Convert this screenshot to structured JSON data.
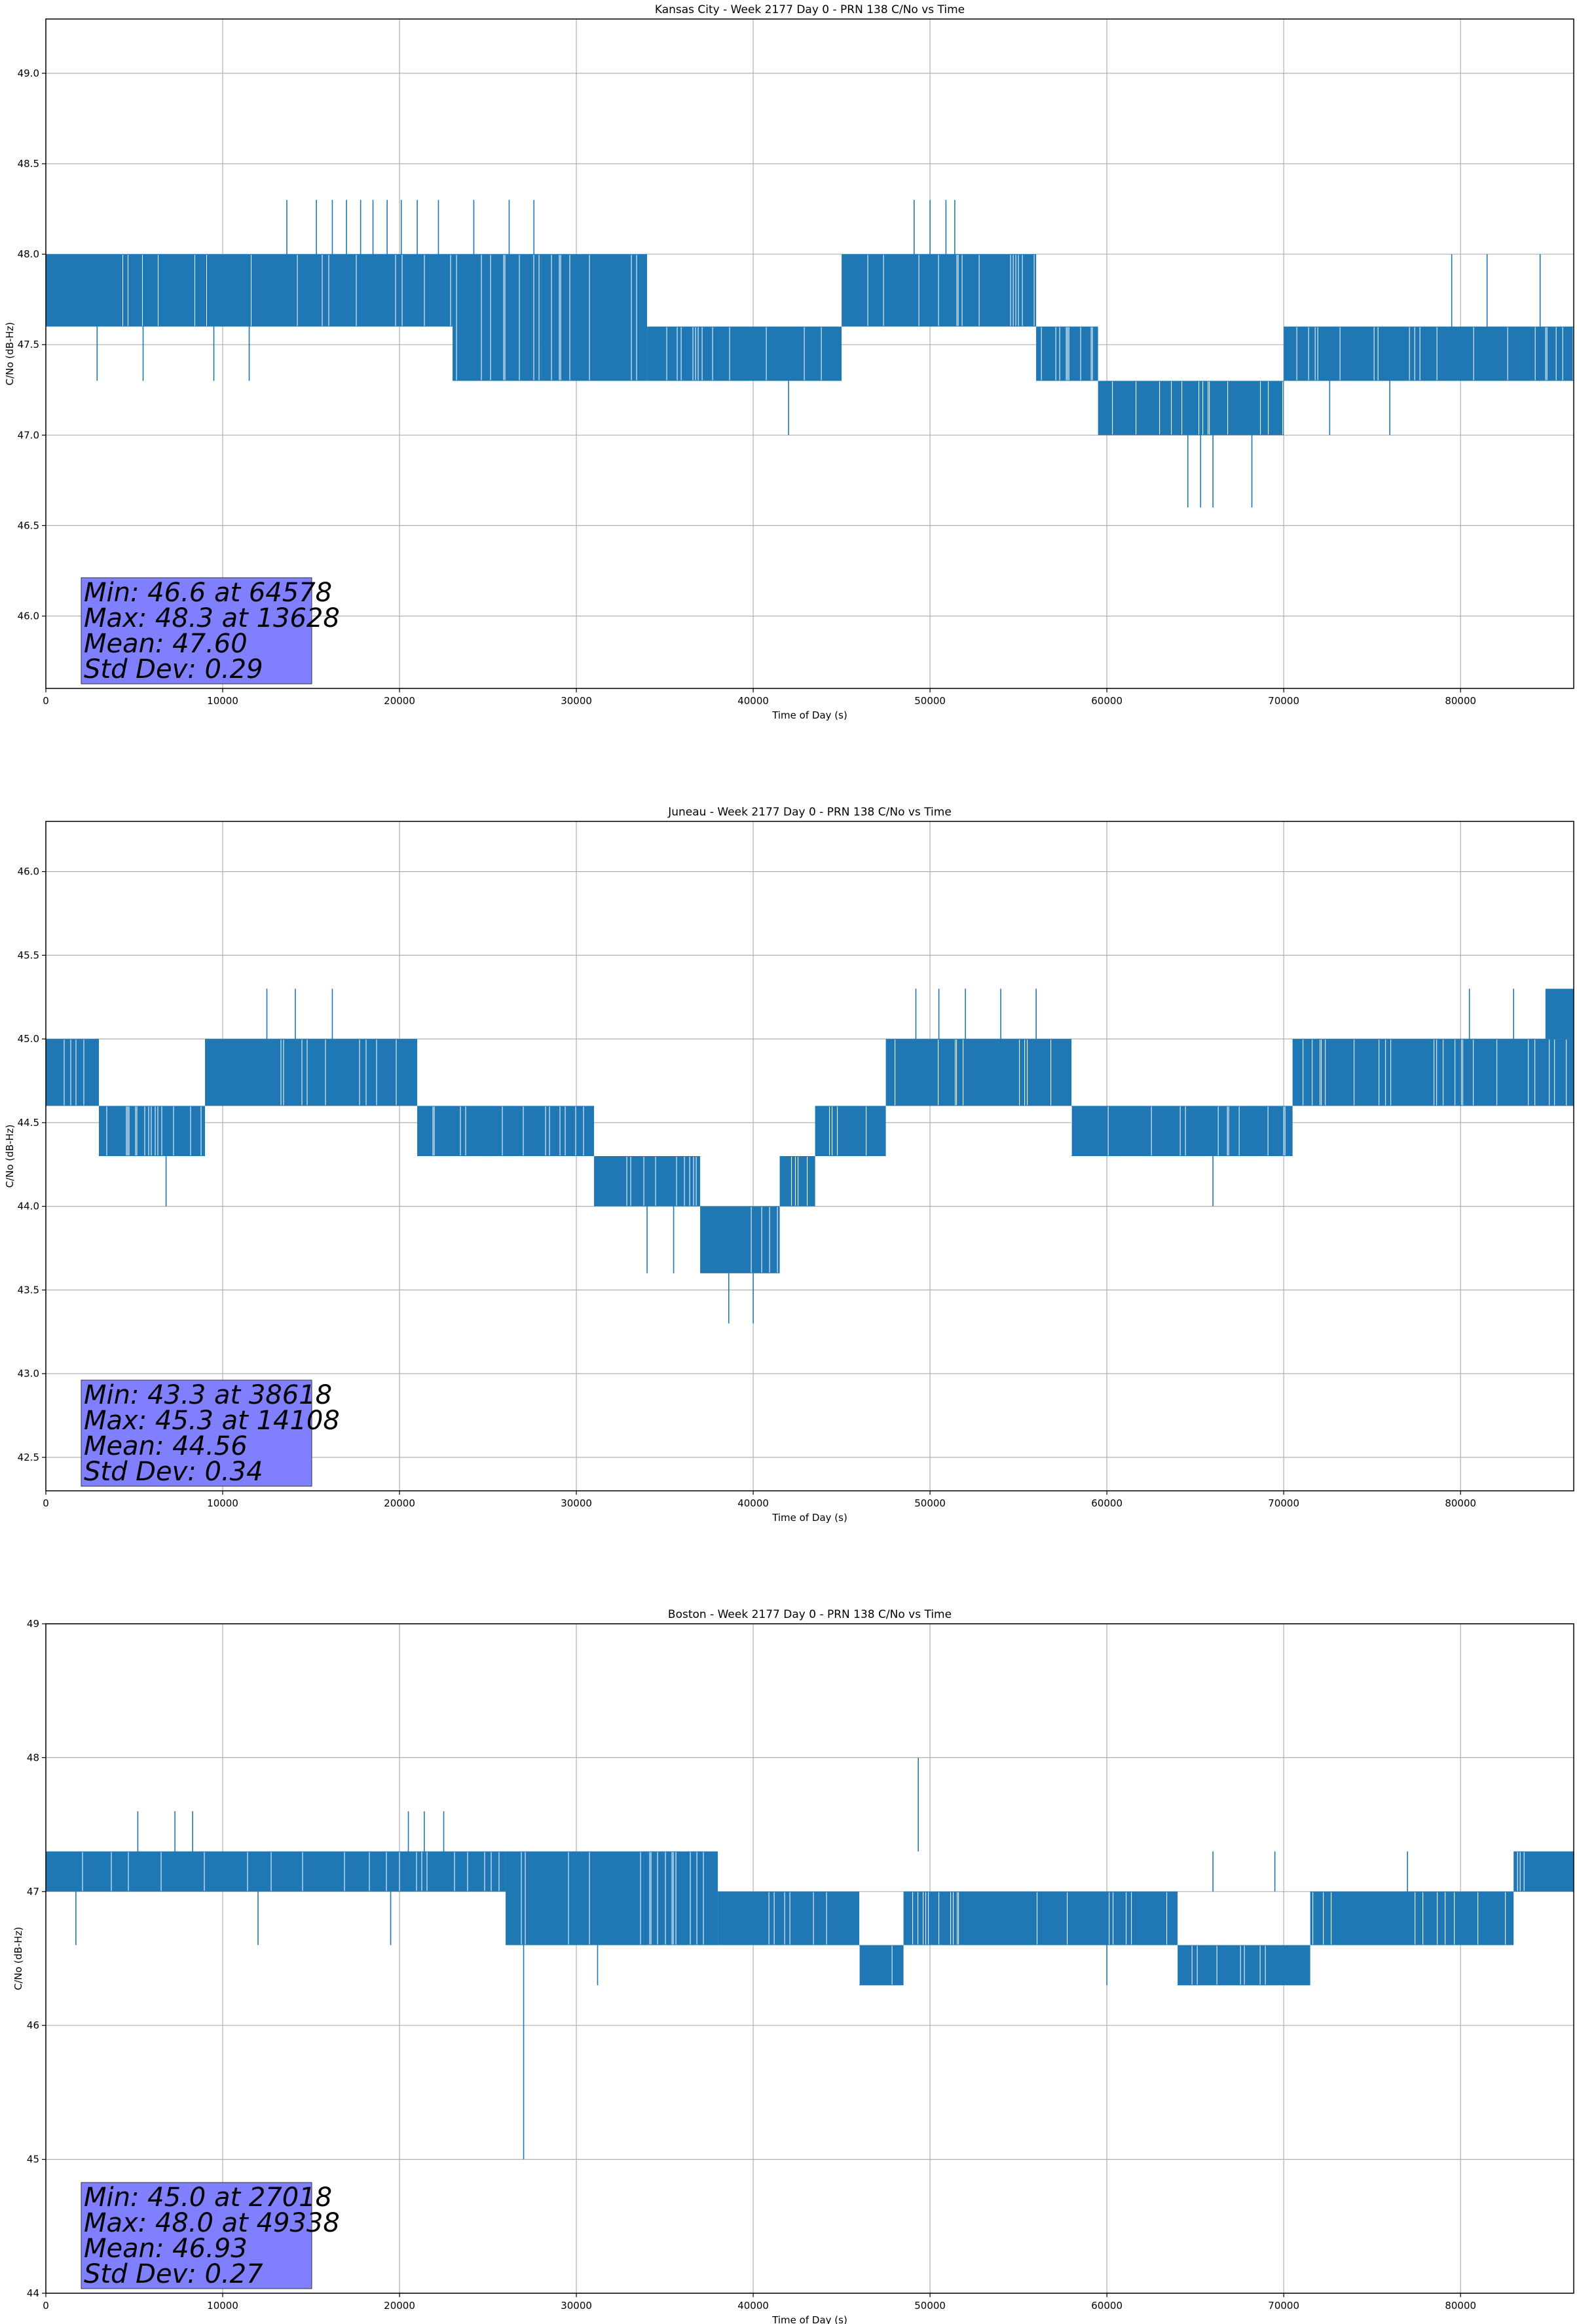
{
  "chart_data": [
    {
      "type": "line",
      "title": "Kansas City - Week 2177 Day 0 - PRN 138 C/No vs Time",
      "xlabel": "Time of Day (s)",
      "ylabel": "C/No (dB-Hz)",
      "xlim": [
        0,
        86400
      ],
      "ylim": [
        45.6,
        49.3
      ],
      "xticks": [
        0,
        10000,
        20000,
        30000,
        40000,
        50000,
        60000,
        70000,
        80000
      ],
      "yticks": [
        "46.0",
        "46.5",
        "47.0",
        "47.5",
        "48.0",
        "48.5",
        "49.0"
      ],
      "grid": true,
      "color": "#1f77b4",
      "stats": [
        "Min: 46.6 at 64578",
        "Max: 48.3 at 13628",
        "Mean: 47.60",
        "Std Dev: 0.29"
      ],
      "series": [
        {
          "segments": [
            {
              "x": [
                0,
                2500
              ],
              "lo": 47.6,
              "hi": 48.0
            },
            {
              "x": [
                2500,
                14000
              ],
              "lo": 47.6,
              "hi": 48.0
            },
            {
              "x": [
                14000,
                23000
              ],
              "lo": 47.6,
              "hi": 48.0
            },
            {
              "x": [
                23000,
                28000
              ],
              "lo": 47.3,
              "hi": 48.0
            },
            {
              "x": [
                28000,
                34000
              ],
              "lo": 47.3,
              "hi": 48.0
            },
            {
              "x": [
                34000,
                45000
              ],
              "lo": 47.3,
              "hi": 47.6
            },
            {
              "x": [
                45000,
                56000
              ],
              "lo": 47.6,
              "hi": 48.0
            },
            {
              "x": [
                56000,
                59500
              ],
              "lo": 47.3,
              "hi": 47.6
            },
            {
              "x": [
                59500,
                70000
              ],
              "lo": 47.0,
              "hi": 47.3
            },
            {
              "x": [
                70000,
                86400
              ],
              "lo": 47.3,
              "hi": 47.6
            }
          ],
          "spikes": [
            {
              "x": 2900,
              "lo": 47.3,
              "hi": 47.6
            },
            {
              "x": 5500,
              "lo": 47.3,
              "hi": 47.6
            },
            {
              "x": 9500,
              "lo": 47.3,
              "hi": 47.6
            },
            {
              "x": 11500,
              "lo": 47.3,
              "hi": 47.6
            },
            {
              "x": 13628,
              "lo": 48.0,
              "hi": 48.3
            },
            {
              "x": 15300,
              "lo": 48.0,
              "hi": 48.3
            },
            {
              "x": 16200,
              "lo": 48.0,
              "hi": 48.3
            },
            {
              "x": 17000,
              "lo": 48.0,
              "hi": 48.3
            },
            {
              "x": 17800,
              "lo": 48.0,
              "hi": 48.3
            },
            {
              "x": 18500,
              "lo": 48.0,
              "hi": 48.3
            },
            {
              "x": 19300,
              "lo": 48.0,
              "hi": 48.3
            },
            {
              "x": 20100,
              "lo": 48.0,
              "hi": 48.3
            },
            {
              "x": 21000,
              "lo": 48.0,
              "hi": 48.3
            },
            {
              "x": 22200,
              "lo": 48.0,
              "hi": 48.3
            },
            {
              "x": 24200,
              "lo": 48.0,
              "hi": 48.3
            },
            {
              "x": 26200,
              "lo": 48.0,
              "hi": 48.3
            },
            {
              "x": 27600,
              "lo": 48.0,
              "hi": 48.3
            },
            {
              "x": 42000,
              "lo": 47.0,
              "hi": 47.3
            },
            {
              "x": 49100,
              "lo": 48.0,
              "hi": 48.3
            },
            {
              "x": 50000,
              "lo": 48.0,
              "hi": 48.3
            },
            {
              "x": 50900,
              "lo": 48.0,
              "hi": 48.3
            },
            {
              "x": 51400,
              "lo": 48.0,
              "hi": 48.3
            },
            {
              "x": 64578,
              "lo": 46.6,
              "hi": 47.0
            },
            {
              "x": 65300,
              "lo": 46.6,
              "hi": 47.0
            },
            {
              "x": 66000,
              "lo": 46.6,
              "hi": 47.0
            },
            {
              "x": 68200,
              "lo": 46.6,
              "hi": 47.0
            },
            {
              "x": 72600,
              "lo": 47.0,
              "hi": 47.3
            },
            {
              "x": 76000,
              "lo": 47.0,
              "hi": 47.3
            },
            {
              "x": 79500,
              "lo": 47.6,
              "hi": 48.0
            },
            {
              "x": 81500,
              "lo": 47.6,
              "hi": 48.0
            },
            {
              "x": 84500,
              "lo": 47.6,
              "hi": 48.0
            }
          ]
        }
      ]
    },
    {
      "type": "line",
      "title": "Juneau - Week 2177 Day 0 - PRN 138 C/No vs Time",
      "xlabel": "Time of Day (s)",
      "ylabel": "C/No (dB-Hz)",
      "xlim": [
        0,
        86400
      ],
      "ylim": [
        42.3,
        46.3
      ],
      "xticks": [
        0,
        10000,
        20000,
        30000,
        40000,
        50000,
        60000,
        70000,
        80000
      ],
      "yticks": [
        "42.5",
        "43.0",
        "43.5",
        "44.0",
        "44.5",
        "45.0",
        "45.5",
        "46.0"
      ],
      "grid": true,
      "color": "#1f77b4",
      "stats": [
        "Min: 43.3 at 38618",
        "Max: 45.3 at 14108",
        "Mean: 44.56",
        "Std Dev: 0.34"
      ],
      "series": [
        {
          "segments": [
            {
              "x": [
                0,
                3000
              ],
              "lo": 44.6,
              "hi": 45.0
            },
            {
              "x": [
                3000,
                9000
              ],
              "lo": 44.3,
              "hi": 44.6
            },
            {
              "x": [
                9000,
                21000
              ],
              "lo": 44.6,
              "hi": 45.0
            },
            {
              "x": [
                21000,
                31000
              ],
              "lo": 44.3,
              "hi": 44.6
            },
            {
              "x": [
                31000,
                37000
              ],
              "lo": 44.0,
              "hi": 44.3
            },
            {
              "x": [
                37000,
                41500
              ],
              "lo": 43.6,
              "hi": 44.0
            },
            {
              "x": [
                41500,
                43500
              ],
              "lo": 44.0,
              "hi": 44.3
            },
            {
              "x": [
                43500,
                47500
              ],
              "lo": 44.3,
              "hi": 44.6
            },
            {
              "x": [
                47500,
                58000
              ],
              "lo": 44.6,
              "hi": 45.0
            },
            {
              "x": [
                58000,
                70500
              ],
              "lo": 44.3,
              "hi": 44.6
            },
            {
              "x": [
                70500,
                86400
              ],
              "lo": 44.6,
              "hi": 45.0
            }
          ],
          "spikes": [
            {
              "x": 6800,
              "lo": 44.0,
              "hi": 44.3
            },
            {
              "x": 12500,
              "lo": 45.0,
              "hi": 45.3
            },
            {
              "x": 14108,
              "lo": 45.0,
              "hi": 45.3
            },
            {
              "x": 16200,
              "lo": 45.0,
              "hi": 45.3
            },
            {
              "x": 34000,
              "lo": 43.6,
              "hi": 44.0
            },
            {
              "x": 35500,
              "lo": 43.6,
              "hi": 44.0
            },
            {
              "x": 38618,
              "lo": 43.3,
              "hi": 43.6
            },
            {
              "x": 40000,
              "lo": 43.3,
              "hi": 43.6
            },
            {
              "x": 49200,
              "lo": 45.0,
              "hi": 45.3
            },
            {
              "x": 50500,
              "lo": 45.0,
              "hi": 45.3
            },
            {
              "x": 52000,
              "lo": 45.0,
              "hi": 45.3
            },
            {
              "x": 54000,
              "lo": 45.0,
              "hi": 45.3
            },
            {
              "x": 56000,
              "lo": 45.0,
              "hi": 45.3
            },
            {
              "x": 66000,
              "lo": 44.0,
              "hi": 44.3
            },
            {
              "x": 80500,
              "lo": 45.0,
              "hi": 45.3
            },
            {
              "x": 83000,
              "lo": 45.0,
              "hi": 45.3
            },
            {
              "x": 85000,
              "lo": 45.0,
              "hi": 45.3
            }
          ],
          "extra_bands": [
            {
              "x": [
                84800,
                86400
              ],
              "lo": 45.0,
              "hi": 45.3
            }
          ]
        }
      ]
    },
    {
      "type": "line",
      "title": "Boston - Week 2177 Day 0 - PRN 138 C/No vs Time",
      "xlabel": "Time of Day (s)",
      "ylabel": "C/No (dB-Hz)",
      "xlim": [
        0,
        86400
      ],
      "ylim": [
        44,
        49
      ],
      "xticks": [
        0,
        10000,
        20000,
        30000,
        40000,
        50000,
        60000,
        70000,
        80000
      ],
      "yticks": [
        "44",
        "45",
        "46",
        "47",
        "48",
        "49"
      ],
      "grid": true,
      "color": "#1f77b4",
      "stats": [
        "Min: 45.0 at 27018",
        "Max: 48.0 at 49338",
        "Mean: 46.93",
        "Std Dev: 0.27"
      ],
      "series": [
        {
          "segments": [
            {
              "x": [
                0,
                26000
              ],
              "lo": 47.0,
              "hi": 47.3
            },
            {
              "x": [
                26000,
                30000
              ],
              "lo": 46.6,
              "hi": 47.3
            },
            {
              "x": [
                30000,
                38000
              ],
              "lo": 46.6,
              "hi": 47.3
            },
            {
              "x": [
                38000,
                46000
              ],
              "lo": 46.6,
              "hi": 47.0
            },
            {
              "x": [
                46000,
                48500
              ],
              "lo": 46.3,
              "hi": 46.6
            },
            {
              "x": [
                48500,
                64000
              ],
              "lo": 46.6,
              "hi": 47.0
            },
            {
              "x": [
                64000,
                71500
              ],
              "lo": 46.3,
              "hi": 46.6
            },
            {
              "x": [
                71500,
                83000
              ],
              "lo": 46.6,
              "hi": 47.0
            },
            {
              "x": [
                83000,
                86400
              ],
              "lo": 47.0,
              "hi": 47.3
            }
          ],
          "spikes": [
            {
              "x": 1700,
              "lo": 46.6,
              "hi": 47.0
            },
            {
              "x": 5200,
              "lo": 47.3,
              "hi": 47.6
            },
            {
              "x": 7300,
              "lo": 47.3,
              "hi": 47.6
            },
            {
              "x": 8300,
              "lo": 47.3,
              "hi": 47.6
            },
            {
              "x": 12000,
              "lo": 46.6,
              "hi": 47.0
            },
            {
              "x": 19500,
              "lo": 46.6,
              "hi": 47.0
            },
            {
              "x": 20500,
              "lo": 47.3,
              "hi": 47.6
            },
            {
              "x": 21400,
              "lo": 47.3,
              "hi": 47.6
            },
            {
              "x": 22500,
              "lo": 47.3,
              "hi": 47.6
            },
            {
              "x": 27018,
              "lo": 45.0,
              "hi": 46.6
            },
            {
              "x": 31200,
              "lo": 46.3,
              "hi": 46.6
            },
            {
              "x": 49338,
              "lo": 47.3,
              "hi": 48.0
            },
            {
              "x": 60000,
              "lo": 46.3,
              "hi": 46.6
            },
            {
              "x": 66000,
              "lo": 47.0,
              "hi": 47.3
            },
            {
              "x": 69500,
              "lo": 47.0,
              "hi": 47.3
            },
            {
              "x": 77000,
              "lo": 47.0,
              "hi": 47.3
            }
          ]
        }
      ]
    }
  ]
}
